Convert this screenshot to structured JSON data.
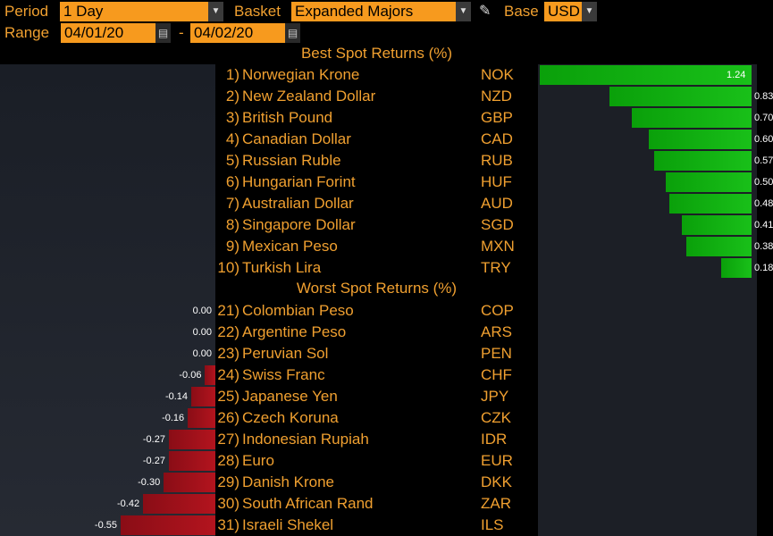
{
  "header": {
    "period_label": "Period",
    "period_value": "1 Day",
    "basket_label": "Basket",
    "basket_value": "Expanded Majors",
    "base_label": "Base",
    "base_value": "USD",
    "range_label": "Range",
    "range_start": "04/01/20",
    "range_dash": "-",
    "range_end": "04/02/20"
  },
  "best": {
    "title": "Best Spot Returns (%)",
    "rows": [
      {
        "rank": "1)",
        "name": "Norwegian Krone",
        "code": "NOK",
        "value": 1.24,
        "label": "1.24"
      },
      {
        "rank": "2)",
        "name": "New Zealand Dollar",
        "code": "NZD",
        "value": 0.83,
        "label": "0.83"
      },
      {
        "rank": "3)",
        "name": "British Pound",
        "code": "GBP",
        "value": 0.7,
        "label": "0.70"
      },
      {
        "rank": "4)",
        "name": "Canadian Dollar",
        "code": "CAD",
        "value": 0.6,
        "label": "0.60"
      },
      {
        "rank": "5)",
        "name": "Russian Ruble",
        "code": "RUB",
        "value": 0.57,
        "label": "0.57"
      },
      {
        "rank": "6)",
        "name": "Hungarian Forint",
        "code": "HUF",
        "value": 0.5,
        "label": "0.50"
      },
      {
        "rank": "7)",
        "name": "Australian Dollar",
        "code": "AUD",
        "value": 0.48,
        "label": "0.48"
      },
      {
        "rank": "8)",
        "name": "Singapore Dollar",
        "code": "SGD",
        "value": 0.41,
        "label": "0.41"
      },
      {
        "rank": "9)",
        "name": "Mexican Peso",
        "code": "MXN",
        "value": 0.38,
        "label": "0.38"
      },
      {
        "rank": "10)",
        "name": "Turkish Lira",
        "code": "TRY",
        "value": 0.18,
        "label": "0.18"
      }
    ]
  },
  "worst": {
    "title": "Worst Spot Returns (%)",
    "rows": [
      {
        "rank": "21)",
        "name": "Colombian Peso",
        "code": "COP",
        "value": 0.0,
        "label": "0.00"
      },
      {
        "rank": "22)",
        "name": "Argentine Peso",
        "code": "ARS",
        "value": 0.0,
        "label": "0.00"
      },
      {
        "rank": "23)",
        "name": "Peruvian Sol",
        "code": "PEN",
        "value": 0.0,
        "label": "0.00"
      },
      {
        "rank": "24)",
        "name": "Swiss Franc",
        "code": "CHF",
        "value": -0.06,
        "label": "-0.06"
      },
      {
        "rank": "25)",
        "name": "Japanese Yen",
        "code": "JPY",
        "value": -0.14,
        "label": "-0.14"
      },
      {
        "rank": "26)",
        "name": "Czech Koruna",
        "code": "CZK",
        "value": -0.16,
        "label": "-0.16"
      },
      {
        "rank": "27)",
        "name": "Indonesian Rupiah",
        "code": "IDR",
        "value": -0.27,
        "label": "-0.27"
      },
      {
        "rank": "28)",
        "name": "Euro",
        "code": "EUR",
        "value": -0.27,
        "label": "-0.27"
      },
      {
        "rank": "29)",
        "name": "Danish Krone",
        "code": "DKK",
        "value": -0.3,
        "label": "-0.30"
      },
      {
        "rank": "30)",
        "name": "South African Rand",
        "code": "ZAR",
        "value": -0.42,
        "label": "-0.42"
      },
      {
        "rank": "31)",
        "name": "Israeli Shekel",
        "code": "ILS",
        "value": -0.55,
        "label": "-0.55"
      }
    ]
  },
  "icons": {
    "dropdown": "chevron-down-icon",
    "calendar": "calendar-icon",
    "edit": "pencil-icon"
  },
  "colors": {
    "accent": "#f0a030",
    "field_bg": "#f79a1e",
    "positive_bar": "#19c019",
    "negative_bar": "#b3141e"
  }
}
